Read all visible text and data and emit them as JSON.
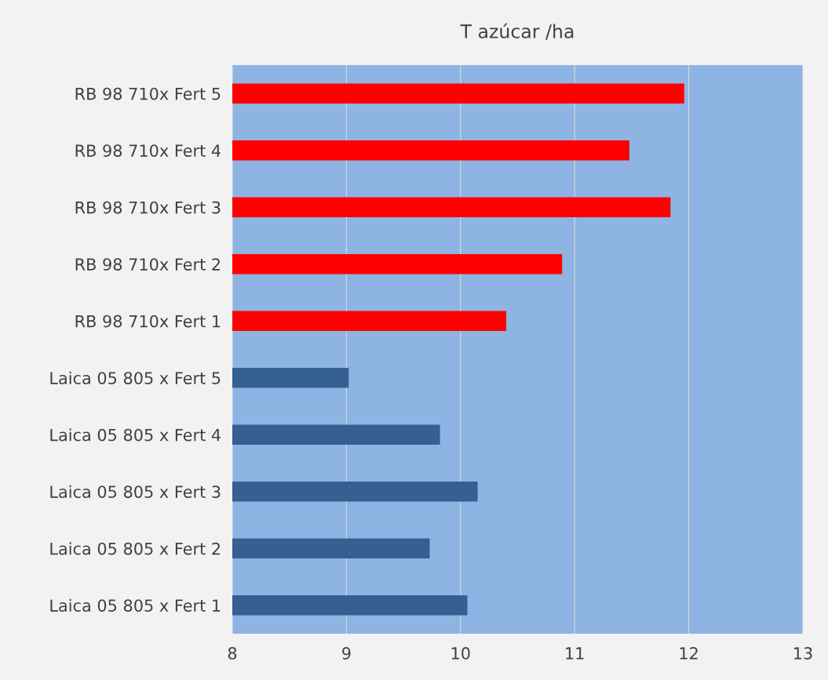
{
  "chart_data": {
    "type": "bar",
    "orientation": "horizontal",
    "title": "T azúcar /ha",
    "categories": [
      "RB 98 710x Fert 5",
      "RB 98 710x Fert 4",
      "RB 98 710x Fert 3",
      "RB 98 710x Fert 2",
      "RB 98 710x Fert 1",
      "Laica 05 805 x Fert 5",
      "Laica 05 805 x Fert 4",
      "Laica 05 805 x Fert 3",
      "Laica 05 805 x Fert 2",
      "Laica 05 805 x Fert 1"
    ],
    "values": [
      11.96,
      11.48,
      11.84,
      10.89,
      10.4,
      9.02,
      9.82,
      10.15,
      9.73,
      10.06
    ],
    "colors": [
      "#ff0000",
      "#ff0000",
      "#ff0000",
      "#ff0000",
      "#ff0000",
      "#366092",
      "#366092",
      "#366092",
      "#366092",
      "#366092"
    ],
    "xlim": [
      8,
      13
    ],
    "xticks": [
      8,
      9,
      10,
      11,
      12,
      13
    ],
    "grid": "x",
    "legend": false
  }
}
